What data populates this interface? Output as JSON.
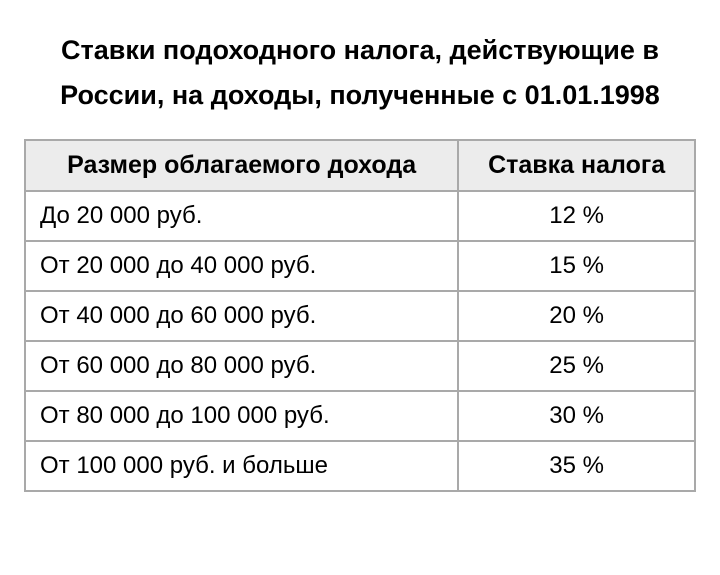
{
  "title": "Ставки подоходного налога, действующие в России, на доходы, полученные с 01.01.1998",
  "table": {
    "columns": [
      "Размер облагаемого дохода",
      "Ставка налога"
    ],
    "rows": [
      {
        "bracket": "До 20 000 руб.",
        "rate": "12 %"
      },
      {
        "bracket": "От 20 000 до 40 000 руб.",
        "rate": "15 %"
      },
      {
        "bracket": "От 40 000 до 60 000 руб.",
        "rate": "20 %"
      },
      {
        "bracket": "От 60 000 до 80 000 руб.",
        "rate": "25 %"
      },
      {
        "bracket": "От 80 000 до 100 000 руб.",
        "rate": "30 %"
      },
      {
        "bracket": "От 100 000 руб. и больше",
        "rate": "35 %"
      }
    ],
    "header_bg": "#ececec",
    "border_color": "#a9a9a9",
    "title_fontsize": 27,
    "header_fontsize": 25,
    "cell_fontsize": 24,
    "background_color": "#ffffff",
    "text_color": "#000000"
  }
}
